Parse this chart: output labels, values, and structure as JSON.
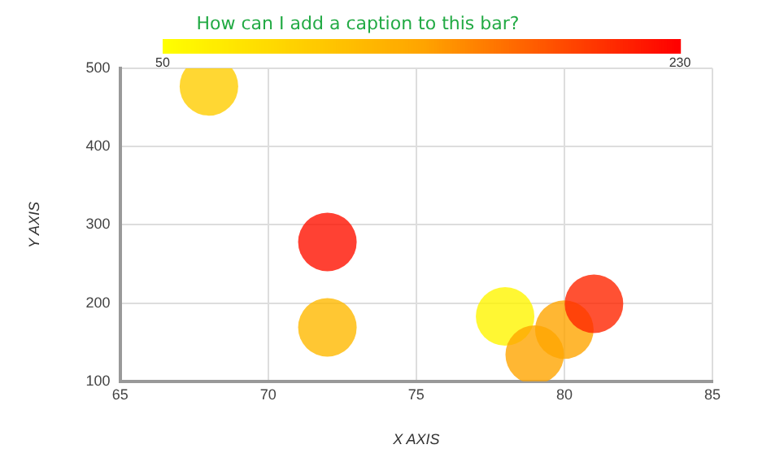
{
  "chart_data": {
    "type": "bubble",
    "xlabel": "X AXIS",
    "ylabel": "Y AXIS",
    "clabel": "How can I add a caption to this bar?",
    "x": [
      68,
      72,
      72,
      78,
      79,
      80,
      81
    ],
    "values": [
      477,
      278,
      169,
      183,
      134,
      166,
      199
    ],
    "sizes": [
      1,
      1,
      1,
      1,
      1,
      1,
      1
    ],
    "cvalues": [
      100,
      220,
      120,
      60,
      140,
      140,
      210
    ],
    "clim": [
      50,
      230
    ],
    "cticks": [
      50,
      230
    ],
    "xlim": [
      65,
      85
    ],
    "xticks": [
      65,
      70,
      75,
      80,
      85
    ],
    "ylim": [
      100,
      500
    ],
    "yticks": [
      100,
      200,
      300,
      400,
      500
    ],
    "grid": true,
    "legend": false
  }
}
